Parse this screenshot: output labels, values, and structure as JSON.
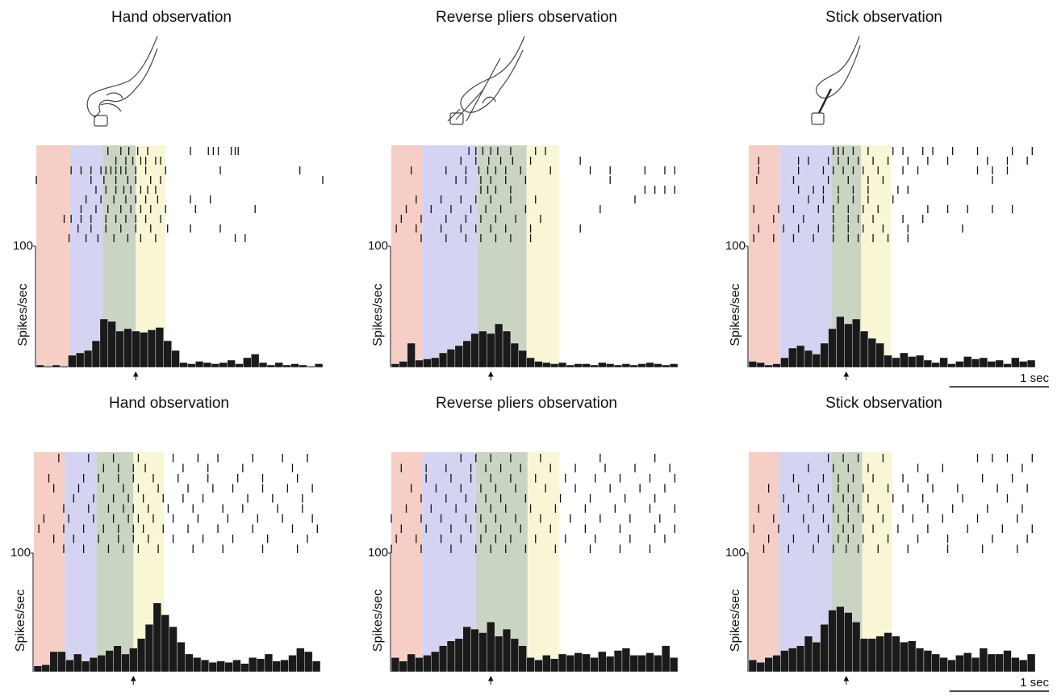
{
  "chart_data": [
    {
      "type": "histogram",
      "title": "Hand observation",
      "ylabel": "Spikes/sec",
      "ylim": [
        0,
        100
      ],
      "yticks": [
        100
      ],
      "xlim": [
        0,
        2.88
      ],
      "color": "#1a1a1a",
      "bins": [
        0,
        0.08,
        0.16,
        0.24,
        0.32,
        0.4,
        0.48,
        0.56,
        0.64,
        0.72,
        0.8,
        0.88,
        0.96,
        1.04,
        1.12,
        1.2,
        1.28,
        1.36,
        1.44,
        1.52,
        1.6,
        1.68,
        1.76,
        1.84,
        1.92,
        2,
        2.08,
        2.16,
        2.24,
        2.32,
        2.4,
        2.48,
        2.56,
        2.64,
        2.72,
        2.8,
        2.88
      ],
      "values": [
        2,
        1,
        2,
        1,
        10,
        12,
        14,
        22,
        40,
        38,
        30,
        32,
        30,
        29,
        31,
        33,
        22,
        14,
        4,
        3,
        5,
        4,
        3,
        4,
        6,
        3,
        8,
        11,
        4,
        2,
        4,
        2,
        3,
        2,
        1,
        3
      ],
      "raster": [
        [
          0.72,
          0.85,
          0.93,
          1.02,
          1.12,
          1.55,
          1.73,
          1.78,
          1.83,
          1.96,
          2.0,
          2.03
        ],
        [
          0.8,
          0.9,
          0.97,
          1.05,
          1.1,
          1.2,
          1.25
        ],
        [
          0.35,
          0.45,
          0.55,
          0.65,
          0.7,
          0.75,
          0.8,
          0.85,
          0.9,
          1.0,
          1.1,
          1.3,
          1.85,
          2.65
        ],
        [
          0.0,
          0.55,
          0.68,
          0.8,
          0.92,
          1.0,
          1.15,
          1.25,
          2.88
        ],
        [
          0.6,
          0.7,
          0.8,
          0.88,
          0.95,
          1.05,
          1.12,
          1.2
        ],
        [
          0.5,
          0.65,
          0.78,
          0.9,
          1.0,
          1.1,
          1.22,
          1.55,
          1.75
        ],
        [
          0.45,
          0.6,
          0.72,
          0.85,
          0.95,
          1.05,
          1.15,
          1.3,
          1.6,
          2.2
        ],
        [
          0.28,
          0.35,
          0.45,
          0.55,
          0.7,
          0.8,
          0.9,
          1.0,
          1.1,
          1.25
        ],
        [
          0.42,
          0.55,
          0.7,
          0.85,
          1.0,
          1.15,
          1.32,
          1.55,
          1.85
        ],
        [
          0.33,
          0.5,
          0.62,
          0.78,
          0.92,
          1.05,
          1.2,
          2.0,
          2.1
        ]
      ],
      "epochs": [
        0,
        0.34,
        0.67,
        1.0,
        1.3
      ],
      "epoch_colors": [
        "#f5c6bc",
        "#cdccf0",
        "#bfcdb7",
        "#f8f5cf"
      ],
      "marker": 1.0
    },
    {
      "type": "histogram",
      "title": "Reverse pliers observation",
      "ylabel": "Spikes/sec",
      "ylim": [
        0,
        100
      ],
      "yticks": [
        100
      ],
      "xlim": [
        0,
        2.88
      ],
      "color": "#1a1a1a",
      "bins": [
        0,
        0.08,
        0.16,
        0.24,
        0.32,
        0.4,
        0.48,
        0.56,
        0.64,
        0.72,
        0.8,
        0.88,
        0.96,
        1.04,
        1.12,
        1.2,
        1.28,
        1.36,
        1.44,
        1.52,
        1.6,
        1.68,
        1.76,
        1.84,
        1.92,
        2,
        2.08,
        2.16,
        2.24,
        2.32,
        2.4,
        2.48,
        2.56,
        2.64,
        2.72,
        2.8,
        2.88
      ],
      "values": [
        3,
        5,
        20,
        6,
        7,
        8,
        12,
        15,
        18,
        22,
        28,
        30,
        28,
        36,
        30,
        20,
        14,
        8,
        5,
        4,
        3,
        4,
        2,
        3,
        3,
        2,
        4,
        3,
        2,
        3,
        2,
        3,
        4,
        3,
        2,
        3
      ],
      "raster": [
        [
          0.78,
          0.85,
          0.92,
          1.0,
          1.07,
          1.2,
          1.45,
          1.55
        ],
        [
          0.7,
          0.85,
          0.98,
          1.1,
          1.22,
          1.4,
          1.9
        ],
        [
          0.2,
          0.55,
          0.75,
          0.88,
          0.97,
          1.05,
          1.15,
          1.3,
          1.6,
          2.0,
          2.2,
          2.55,
          2.75,
          2.85
        ],
        [
          0.65,
          0.75,
          0.9,
          1.0,
          1.15,
          1.35,
          2.2
        ],
        [
          0.9,
          0.97,
          1.05,
          1.2,
          2.55,
          2.65,
          2.75,
          2.85
        ],
        [
          0.25,
          0.5,
          0.7,
          0.85,
          1.0,
          1.2,
          1.45,
          2.45
        ],
        [
          0.15,
          0.4,
          0.6,
          0.8,
          0.95,
          1.1,
          1.35,
          2.1
        ],
        [
          0.1,
          0.3,
          0.55,
          0.75,
          0.9,
          1.05,
          1.25,
          1.5
        ],
        [
          0.05,
          0.25,
          0.5,
          0.7,
          0.85,
          1.0,
          1.15,
          1.4,
          1.9
        ],
        [
          0.3,
          0.55,
          0.75,
          0.9,
          1.05,
          1.2,
          1.4
        ]
      ],
      "epochs": [
        0,
        0.31,
        0.87,
        1.36,
        1.69
      ],
      "epoch_colors": [
        "#f5c6bc",
        "#cdccf0",
        "#bfcdb7",
        "#f8f5cf"
      ],
      "marker": 1.0
    },
    {
      "type": "histogram",
      "title": "Stick observation",
      "ylabel": "Spikes/sec",
      "ylim": [
        0,
        100
      ],
      "yticks": [
        100
      ],
      "xlim": [
        0,
        2.88
      ],
      "color": "#1a1a1a",
      "bins": [
        0,
        0.08,
        0.16,
        0.24,
        0.32,
        0.4,
        0.48,
        0.56,
        0.64,
        0.72,
        0.8,
        0.88,
        0.96,
        1.04,
        1.12,
        1.2,
        1.28,
        1.36,
        1.44,
        1.52,
        1.6,
        1.68,
        1.76,
        1.84,
        1.92,
        2,
        2.08,
        2.16,
        2.24,
        2.32,
        2.4,
        2.48,
        2.56,
        2.64,
        2.72,
        2.8,
        2.88
      ],
      "values": [
        5,
        4,
        2,
        3,
        8,
        16,
        18,
        14,
        11,
        20,
        32,
        42,
        36,
        40,
        30,
        24,
        20,
        10,
        8,
        12,
        9,
        10,
        6,
        4,
        8,
        3,
        5,
        9,
        7,
        8,
        5,
        6,
        3,
        8,
        5,
        6
      ],
      "raster": [
        [
          0.85,
          0.9,
          0.95,
          1.05,
          1.2,
          1.45,
          1.55,
          1.75,
          1.85,
          2.05,
          2.3,
          2.65,
          2.85
        ],
        [
          0.1,
          0.5,
          0.6,
          0.8,
          0.9,
          1.0,
          1.1,
          1.25,
          1.4,
          1.6,
          1.8,
          2.0,
          2.4,
          2.6,
          2.8
        ],
        [
          0.1,
          0.5,
          0.75,
          0.85,
          0.95,
          1.05,
          1.15,
          1.3,
          1.55,
          1.7,
          2.3,
          2.45,
          2.6
        ],
        [
          0.08,
          0.45,
          0.8,
          1.0,
          1.2,
          1.35,
          2.45
        ],
        [
          0.5,
          0.65,
          0.75,
          0.9,
          1.05,
          1.2,
          1.5,
          1.6
        ],
        [
          0.6,
          0.75,
          0.9,
          1.05,
          1.2,
          1.45
        ],
        [
          0.05,
          0.3,
          0.45,
          0.7,
          0.85,
          1.0,
          1.15,
          1.3,
          1.8,
          2.0,
          2.2,
          2.45,
          2.65
        ],
        [
          0.25,
          0.55,
          0.85,
          1.0,
          1.1,
          1.25,
          1.55,
          1.75
        ],
        [
          0.1,
          0.35,
          0.5,
          0.7,
          0.85,
          1.0,
          1.15,
          1.35,
          1.6,
          2.15
        ],
        [
          0.05,
          0.25,
          0.45,
          0.65,
          0.85,
          1.0,
          1.1,
          1.25,
          1.4,
          1.6
        ]
      ],
      "epochs": [
        0,
        0.31,
        0.83,
        1.13,
        1.43
      ],
      "epoch_colors": [
        "#f5c6bc",
        "#cdccf0",
        "#bfcdb7",
        "#f8f5cf"
      ],
      "marker": 0.98,
      "scalebar": {
        "value": 1,
        "label": "1 sec"
      }
    },
    {
      "type": "histogram",
      "title": "Hand observation",
      "ylabel": "Spikes/sec",
      "ylim": [
        0,
        100
      ],
      "yticks": [
        100
      ],
      "xlim": [
        0,
        2.88
      ],
      "color": "#1a1a1a",
      "bins": [
        0,
        0.08,
        0.16,
        0.24,
        0.32,
        0.4,
        0.48,
        0.56,
        0.64,
        0.72,
        0.8,
        0.88,
        0.96,
        1.04,
        1.12,
        1.2,
        1.28,
        1.36,
        1.44,
        1.52,
        1.6,
        1.68,
        1.76,
        1.84,
        1.92,
        2,
        2.08,
        2.16,
        2.24,
        2.32,
        2.4,
        2.48,
        2.56,
        2.64,
        2.72,
        2.8,
        2.88
      ],
      "values": [
        5,
        6,
        17,
        17,
        10,
        15,
        9,
        12,
        14,
        18,
        22,
        15,
        20,
        28,
        40,
        58,
        48,
        38,
        25,
        15,
        12,
        10,
        8,
        9,
        8,
        10,
        7,
        12,
        11,
        15,
        9,
        10,
        14,
        20,
        17,
        9
      ],
      "raster": [
        [
          0.25,
          0.55,
          0.8,
          1.05,
          1.4,
          1.65,
          1.85,
          2.2,
          2.5,
          2.75
        ],
        [
          0.7,
          0.85,
          1.0,
          1.12,
          1.5,
          1.75,
          2.1,
          2.6
        ],
        [
          0.15,
          0.5,
          0.65,
          0.85,
          1.0,
          1.2,
          1.45,
          1.75,
          2.05,
          2.3,
          2.65
        ],
        [
          0.2,
          0.45,
          0.7,
          0.9,
          1.05,
          1.25,
          1.55,
          1.8,
          2.0,
          2.3,
          2.55,
          2.8
        ],
        [
          0.4,
          0.6,
          0.8,
          0.95,
          1.1,
          1.3,
          1.5,
          1.7,
          2.15,
          2.4,
          2.7
        ],
        [
          0.3,
          0.55,
          0.75,
          0.9,
          1.0,
          1.15,
          1.35,
          1.6,
          1.9,
          2.1,
          2.45,
          2.7
        ],
        [
          0.1,
          0.35,
          0.6,
          0.8,
          0.95,
          1.05,
          1.2,
          1.4,
          1.65,
          1.95,
          2.25,
          2.5,
          2.8
        ],
        [
          0.05,
          0.3,
          0.5,
          0.7,
          0.85,
          1.0,
          1.1,
          1.3,
          1.55,
          1.85,
          2.2,
          2.6,
          2.85
        ],
        [
          0.2,
          0.4,
          0.65,
          0.85,
          1.0,
          1.15,
          1.4,
          1.7,
          2.0,
          2.35,
          2.75
        ],
        [
          0.3,
          0.5,
          0.75,
          0.9,
          1.05,
          1.25,
          1.6,
          1.9,
          2.3,
          2.65
        ]
      ],
      "epochs": [
        0,
        0.31,
        0.63,
        1.0,
        1.31
      ],
      "epoch_colors": [
        "#f5c6bc",
        "#cdccf0",
        "#bfcdb7",
        "#f8f5cf"
      ],
      "marker": 1.0
    },
    {
      "type": "histogram",
      "title": "Reverse pliers observation",
      "ylabel": "Spikes/sec",
      "ylim": [
        0,
        100
      ],
      "yticks": [
        100
      ],
      "xlim": [
        0,
        2.88
      ],
      "color": "#1a1a1a",
      "bins": [
        0,
        0.08,
        0.16,
        0.24,
        0.32,
        0.4,
        0.48,
        0.56,
        0.64,
        0.72,
        0.8,
        0.88,
        0.96,
        1.04,
        1.12,
        1.2,
        1.28,
        1.36,
        1.44,
        1.52,
        1.6,
        1.68,
        1.76,
        1.84,
        1.92,
        2,
        2.08,
        2.16,
        2.24,
        2.32,
        2.4,
        2.48,
        2.56,
        2.64,
        2.72,
        2.8,
        2.88
      ],
      "values": [
        12,
        9,
        15,
        12,
        14,
        17,
        22,
        26,
        28,
        38,
        36,
        33,
        42,
        30,
        36,
        28,
        22,
        12,
        10,
        14,
        11,
        15,
        14,
        16,
        15,
        12,
        17,
        13,
        18,
        20,
        14,
        14,
        16,
        14,
        22,
        12
      ],
      "raster": [
        [
          0.7,
          0.85,
          1.0,
          1.2,
          1.5,
          2.1,
          2.65
        ],
        [
          0.1,
          0.35,
          0.55,
          0.8,
          0.95,
          1.1,
          1.3,
          1.6,
          1.85,
          2.15,
          2.45,
          2.8
        ],
        [
          0.35,
          0.6,
          0.8,
          1.0,
          1.2,
          1.45,
          1.75,
          2.05,
          2.3,
          2.6,
          2.85
        ],
        [
          0.2,
          0.45,
          0.7,
          0.9,
          1.05,
          1.25,
          1.55,
          1.85,
          2.2,
          2.5,
          2.75
        ],
        [
          0.3,
          0.55,
          0.75,
          0.95,
          1.1,
          1.35,
          1.7,
          2.0,
          2.35,
          2.65
        ],
        [
          0.15,
          0.4,
          0.65,
          0.85,
          1.0,
          1.15,
          1.4,
          1.65,
          1.95,
          2.25,
          2.6,
          2.85
        ],
        [
          0.0,
          0.3,
          0.5,
          0.75,
          0.9,
          1.05,
          1.25,
          1.5,
          1.8,
          2.1,
          2.4,
          2.7
        ],
        [
          0.1,
          0.35,
          0.6,
          0.8,
          0.95,
          1.1,
          1.3,
          1.6,
          1.95,
          2.3,
          2.65,
          2.85
        ],
        [
          0.05,
          0.25,
          0.5,
          0.7,
          0.9,
          1.05,
          1.2,
          1.45,
          1.75,
          2.05,
          2.4,
          2.75
        ],
        [
          0.0,
          0.3,
          0.6,
          0.85,
          1.0,
          1.15,
          1.35,
          1.65,
          2.0,
          2.3,
          2.6
        ]
      ],
      "epochs": [
        0,
        0.31,
        0.85,
        1.37,
        1.69
      ],
      "epoch_colors": [
        "#f5c6bc",
        "#cdccf0",
        "#bfcdb7",
        "#f8f5cf"
      ],
      "marker": 1.0
    },
    {
      "type": "histogram",
      "title": "Stick observation",
      "ylabel": "Spikes/sec",
      "ylim": [
        0,
        100
      ],
      "yticks": [
        100
      ],
      "xlim": [
        0,
        2.88
      ],
      "color": "#1a1a1a",
      "bins": [
        0,
        0.08,
        0.16,
        0.24,
        0.32,
        0.4,
        0.48,
        0.56,
        0.64,
        0.72,
        0.8,
        0.88,
        0.96,
        1.04,
        1.12,
        1.2,
        1.28,
        1.36,
        1.44,
        1.52,
        1.6,
        1.68,
        1.76,
        1.84,
        1.92,
        2,
        2.08,
        2.16,
        2.24,
        2.32,
        2.4,
        2.48,
        2.56,
        2.64,
        2.72,
        2.8,
        2.88
      ],
      "values": [
        10,
        8,
        12,
        14,
        18,
        20,
        22,
        30,
        25,
        40,
        52,
        55,
        50,
        42,
        28,
        28,
        30,
        33,
        30,
        25,
        26,
        20,
        18,
        15,
        12,
        10,
        14,
        16,
        12,
        20,
        15,
        15,
        18,
        12,
        10,
        15
      ],
      "raster": [
        [
          0.8,
          0.95,
          1.1,
          1.35,
          2.3,
          2.45,
          2.6,
          2.85
        ],
        [
          0.6,
          0.85,
          1.0,
          1.2,
          1.7,
          1.95,
          2.75
        ],
        [
          0.45,
          0.75,
          0.9,
          1.05,
          1.25,
          1.55,
          1.8,
          2.35,
          2.65
        ],
        [
          0.2,
          0.5,
          0.7,
          0.9,
          1.0,
          1.15,
          1.4,
          1.6,
          1.85,
          2.1,
          2.5,
          2.8
        ],
        [
          0.35,
          0.6,
          0.8,
          0.95,
          1.05,
          1.2,
          1.45,
          1.75,
          2.15,
          2.6
        ],
        [
          0.1,
          0.4,
          0.65,
          0.85,
          1.0,
          1.1,
          1.3,
          1.55,
          1.8,
          2.05,
          2.4,
          2.75
        ],
        [
          0.25,
          0.55,
          0.75,
          0.9,
          1.0,
          1.15,
          1.35,
          1.65,
          1.95,
          2.3,
          2.7
        ],
        [
          0.05,
          0.3,
          0.6,
          0.8,
          0.95,
          1.05,
          1.25,
          1.5,
          1.8,
          2.2,
          2.55,
          2.85
        ],
        [
          0.2,
          0.45,
          0.7,
          0.9,
          1.0,
          1.15,
          1.4,
          1.7,
          2.0,
          2.45,
          2.8
        ],
        [
          0.15,
          0.4,
          0.65,
          0.85,
          0.98,
          1.1,
          1.3,
          1.6,
          2.0,
          2.35,
          2.7
        ]
      ],
      "epochs": [
        0,
        0.3,
        0.83,
        1.14,
        1.44
      ],
      "epoch_colors": [
        "#f5c6bc",
        "#cdccf0",
        "#bfcdb7",
        "#f8f5cf"
      ],
      "marker": 0.98,
      "scalebar": {
        "value": 1,
        "label": "1 sec"
      }
    }
  ]
}
